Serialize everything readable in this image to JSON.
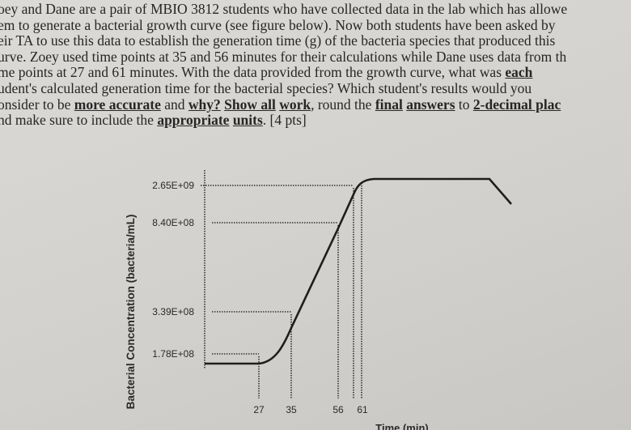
{
  "question": {
    "lines": [
      [
        {
          "text": "oey and Dane are a pair of MBIO 3812 students who have collected data in the lab which has allowe"
        }
      ],
      [
        {
          "text": "em to generate a bacterial growth curve (see figure below). Now both students have been asked by"
        }
      ],
      [
        {
          "text": "eir TA to use this data to establish the generation time (g) of the bacteria species that produced this"
        }
      ],
      [
        {
          "text": "urve. Zoey used time points at 35 and 56 minutes for their calculations while Dane uses data from th"
        }
      ],
      [
        {
          "text": "me points at 27 and 61 minutes. With the data provided from the growth curve, what was "
        },
        {
          "text": "each",
          "emphasis": true
        }
      ],
      [
        {
          "text": "udent's calculated generation time for the bacterial species? Which student's results would you"
        }
      ],
      [
        {
          "text": "onsider to be "
        },
        {
          "text": "more accurate",
          "emphasis": true
        },
        {
          "text": " and "
        },
        {
          "text": "why?",
          "emphasis": true
        },
        {
          "text": " "
        },
        {
          "text": "Show all",
          "emphasis": true
        },
        {
          "text": " "
        },
        {
          "text": "work",
          "emphasis": true
        },
        {
          "text": ", round the "
        },
        {
          "text": "final",
          "emphasis": true
        },
        {
          "text": " "
        },
        {
          "text": "answers",
          "emphasis": true
        },
        {
          "text": " to "
        },
        {
          "text": "2-decimal plac",
          "emphasis": true
        }
      ],
      [
        {
          "text": "nd make sure to include the "
        },
        {
          "text": "appropriate",
          "emphasis": true
        },
        {
          "text": " "
        },
        {
          "text": "units",
          "emphasis": true
        },
        {
          "text": ". [4 pts]"
        }
      ]
    ]
  },
  "figure": {
    "y_axis_title": "Bacterial Concentration (bacteria/mL)",
    "x_axis_title": "Time (min)",
    "y_labels": [
      "2.65E+09",
      "8.40E+08",
      "3.39E+08",
      "1.78E+08"
    ],
    "x_labels": [
      "27",
      "35",
      "56",
      "61"
    ]
  }
}
